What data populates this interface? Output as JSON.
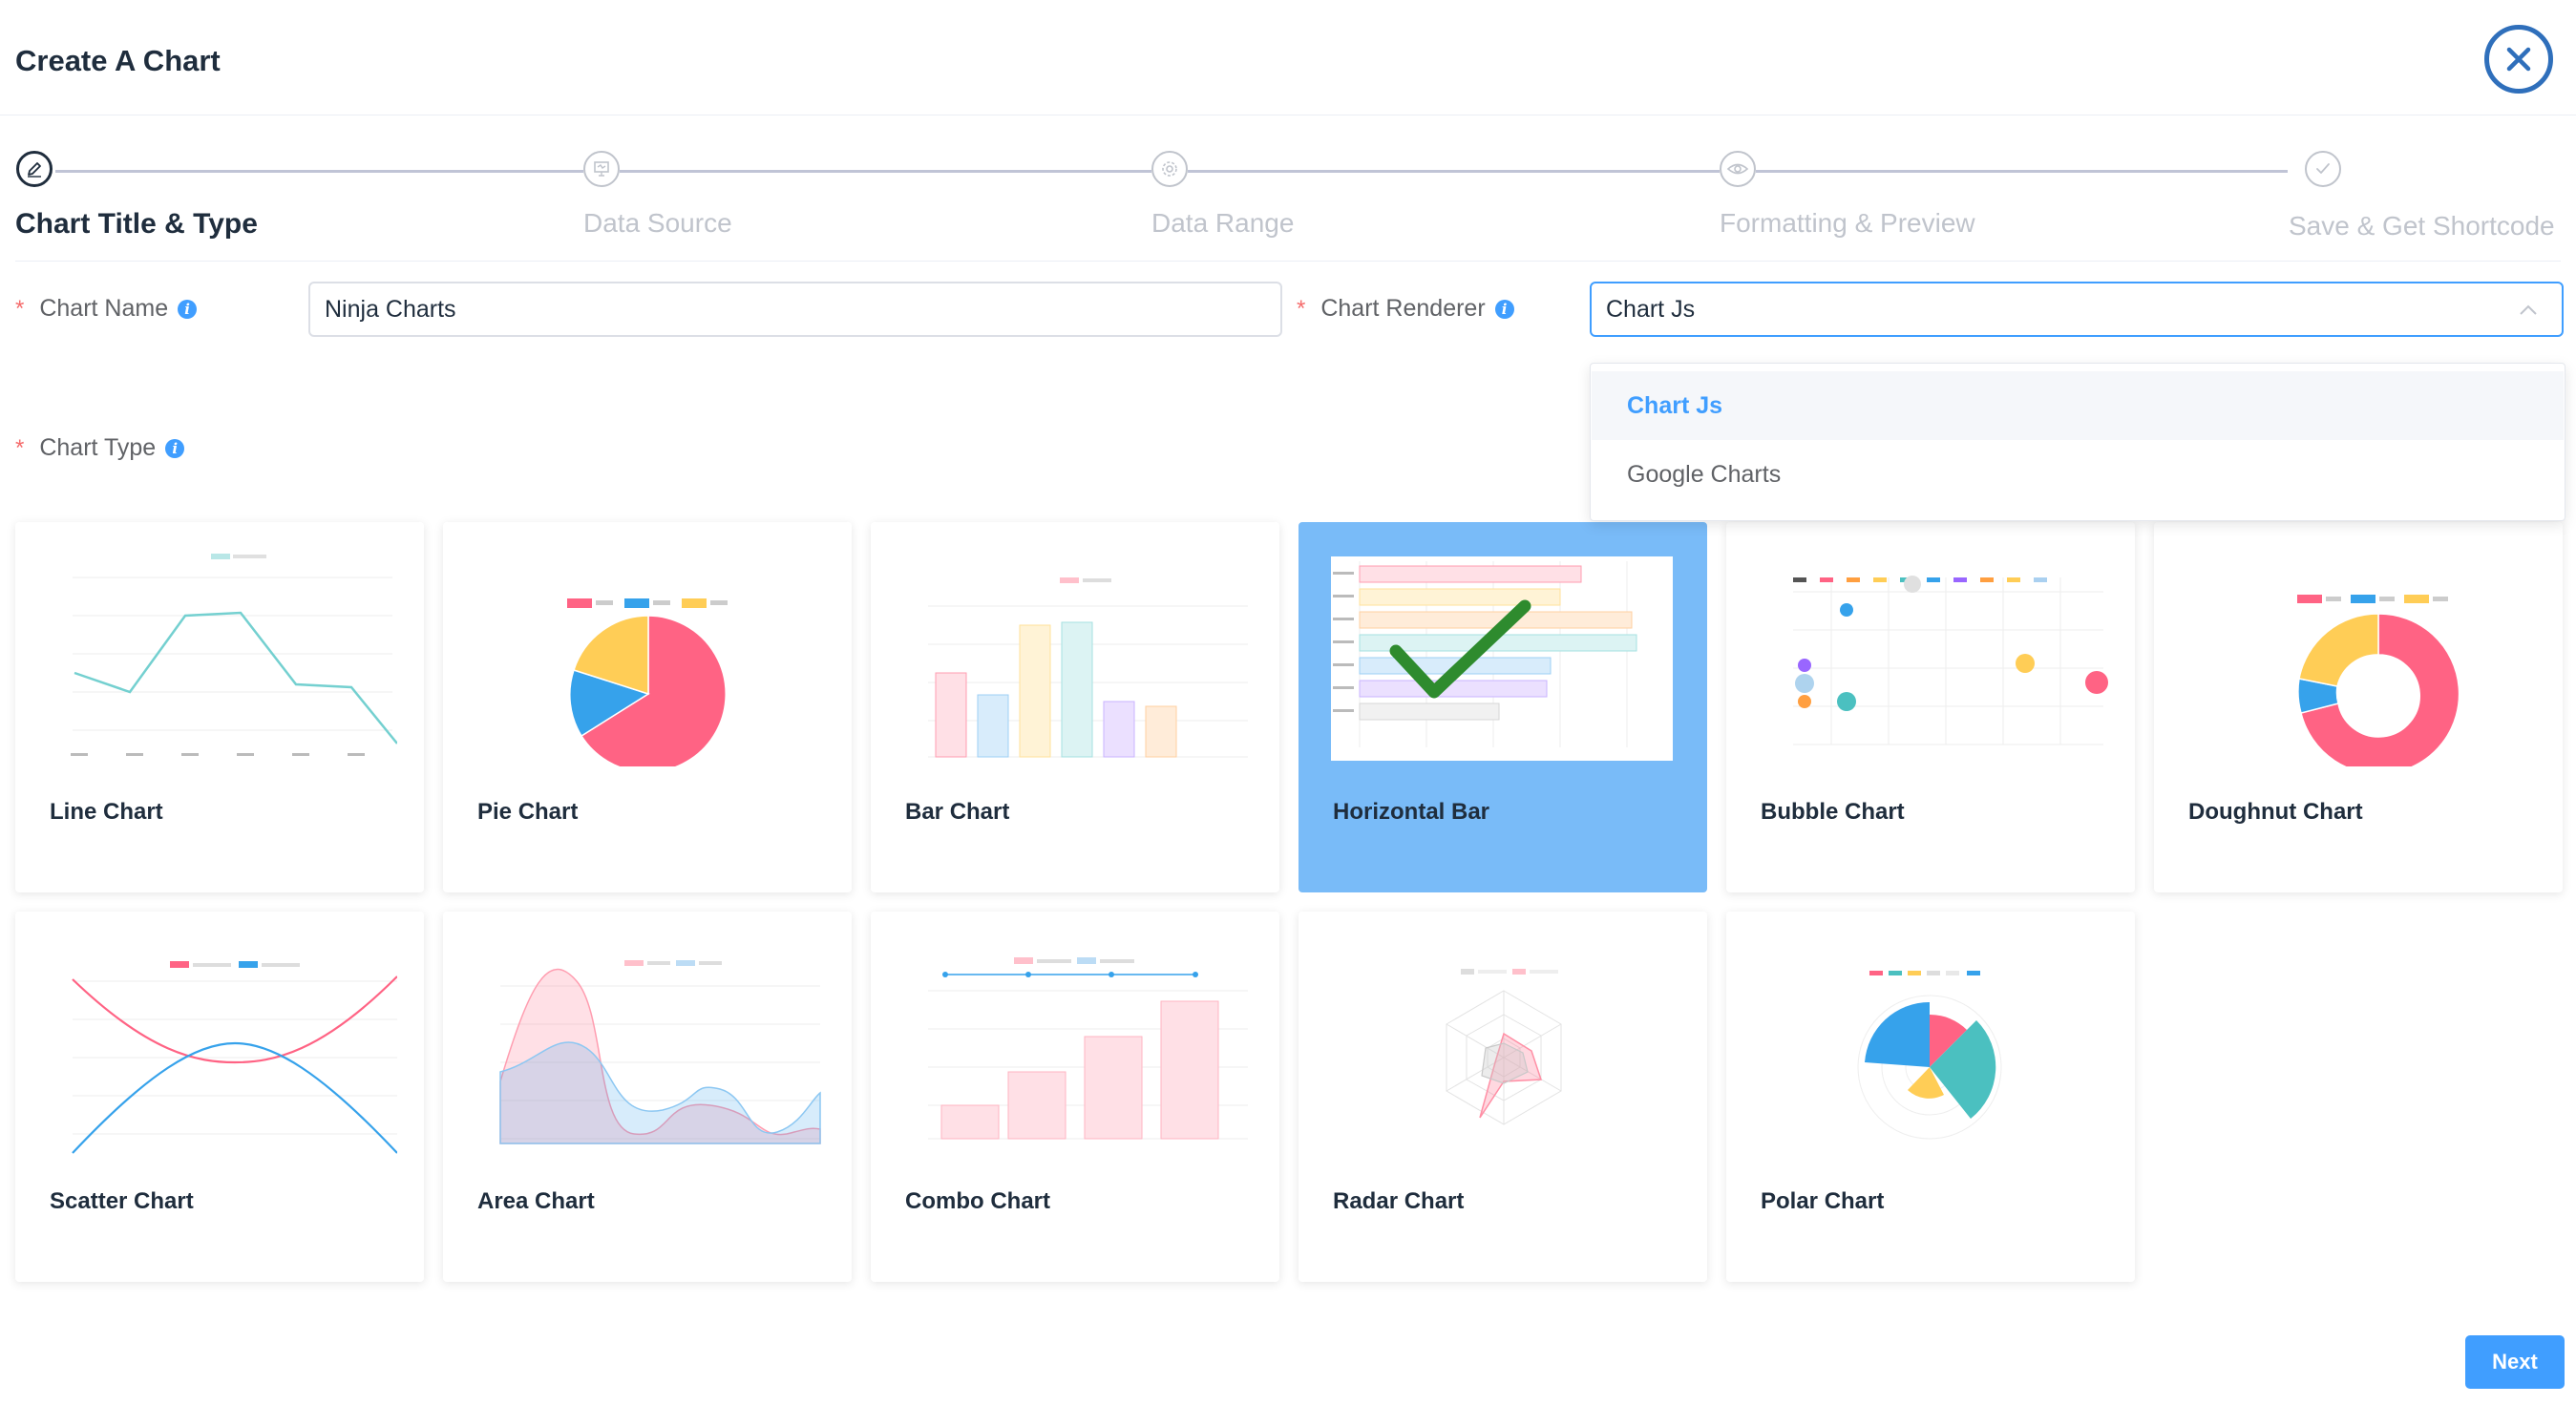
{
  "header": {
    "title": "Create A Chart",
    "close_icon": "close-icon"
  },
  "steps": [
    {
      "label": "Chart Title & Type",
      "icon": "pencil-icon",
      "active": true
    },
    {
      "label": "Data Source",
      "icon": "presentation-icon",
      "active": false
    },
    {
      "label": "Data Range",
      "icon": "gear-icon",
      "active": false
    },
    {
      "label": "Formatting & Preview",
      "icon": "eye-icon",
      "active": false
    },
    {
      "label": "Save & Get Shortcode",
      "icon": "check-icon",
      "active": false
    }
  ],
  "form": {
    "chart_name": {
      "label": "Chart Name",
      "value": "Ninja Charts"
    },
    "chart_renderer": {
      "label": "Chart Renderer",
      "value": "Chart Js",
      "options": [
        "Chart Js",
        "Google Charts"
      ],
      "selected": "Chart Js"
    },
    "chart_type": {
      "label": "Chart Type"
    }
  },
  "chart_types": [
    {
      "label": "Line Chart",
      "selected": false
    },
    {
      "label": "Pie Chart",
      "selected": false
    },
    {
      "label": "Bar Chart",
      "selected": false
    },
    {
      "label": "Horizontal Bar",
      "selected": true
    },
    {
      "label": "Bubble Chart",
      "selected": false
    },
    {
      "label": "Doughnut Chart",
      "selected": false
    },
    {
      "label": "Scatter Chart",
      "selected": false
    },
    {
      "label": "Area Chart",
      "selected": false
    },
    {
      "label": "Combo Chart",
      "selected": false
    },
    {
      "label": "Radar Chart",
      "selected": false
    },
    {
      "label": "Polar Chart",
      "selected": false
    }
  ],
  "footer": {
    "next_label": "Next"
  },
  "colors": {
    "accent": "#409eff",
    "selected_card": "#79bbf8",
    "required": "#f56c6c",
    "check": "#2e8b2e",
    "red": "#ff6384",
    "blue": "#36a2eb",
    "yellow": "#ffcd56",
    "teal": "#4bc0c0",
    "purple": "#9966ff",
    "orange": "#ff9f40"
  }
}
